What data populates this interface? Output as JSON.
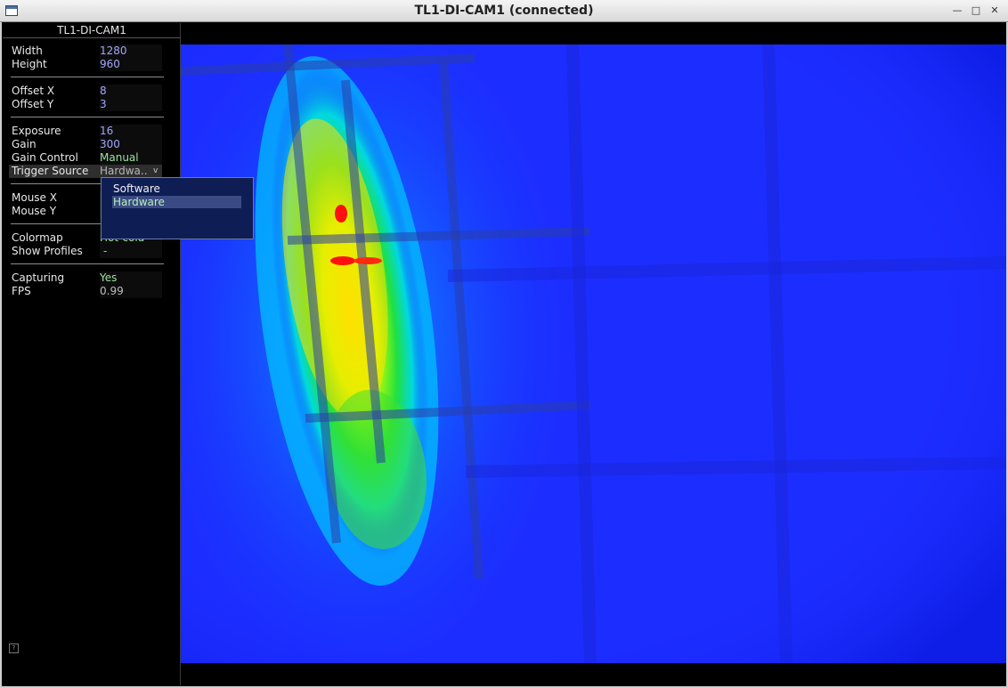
{
  "window": {
    "title": "TL1-DI-CAM1 (connected)",
    "min_icon": "minimize-icon",
    "max_icon": "maximize-icon",
    "close_icon": "close-icon"
  },
  "panel": {
    "header": "TL1-DI-CAM1",
    "width": {
      "label": "Width",
      "value": "1280"
    },
    "height": {
      "label": "Height",
      "value": "960"
    },
    "offset_x": {
      "label": "Offset X",
      "value": "8"
    },
    "offset_y": {
      "label": "Offset Y",
      "value": "3"
    },
    "exposure": {
      "label": "Exposure",
      "value": "16"
    },
    "gain": {
      "label": "Gain",
      "value": "300"
    },
    "gain_control": {
      "label": "Gain Control",
      "value": "Manual"
    },
    "trigger_source": {
      "label": "Trigger Source",
      "value": "Hardwa.."
    },
    "mouse_x": {
      "label": "Mouse X",
      "value": ""
    },
    "mouse_y": {
      "label": "Mouse Y",
      "value": ""
    },
    "colormap": {
      "label": "Colormap",
      "value": "Hot-cold"
    },
    "show_profiles": {
      "label": "Show Profiles",
      "value": "-"
    },
    "capturing": {
      "label": "Capturing",
      "value": "Yes"
    },
    "fps": {
      "label": "FPS",
      "value": "0.99"
    }
  },
  "trigger_dropdown": {
    "options": [
      "Software",
      "Hardware"
    ],
    "selected": "Hardware"
  },
  "colors": {
    "image_background": "#1b2cff",
    "highlight": "#3a4a82",
    "popup": "#0e1e55"
  }
}
